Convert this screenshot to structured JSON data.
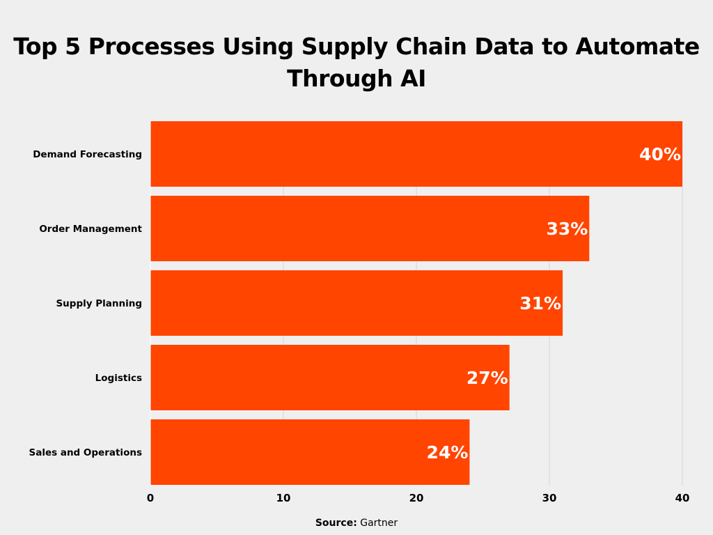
{
  "chart_data": {
    "type": "bar",
    "orientation": "horizontal",
    "title": "Top 5 Processes Using Supply Chain Data to Automate Through AI",
    "categories": [
      "Demand Forecasting",
      "Order Management",
      "Supply Planning",
      "Logistics",
      "Sales and Operations"
    ],
    "values": [
      40,
      33,
      31,
      27,
      24
    ],
    "data_labels": [
      "40%",
      "33%",
      "31%",
      "27%",
      "24%"
    ],
    "xlim": [
      0,
      40
    ],
    "xticks": [
      0,
      10,
      20,
      30,
      40
    ],
    "xlabel": "",
    "ylabel": "",
    "grid": true,
    "bar_color": "#ff4500",
    "label_color": "#ffffff"
  },
  "source": {
    "label": "Source:",
    "value": "Gartner"
  }
}
